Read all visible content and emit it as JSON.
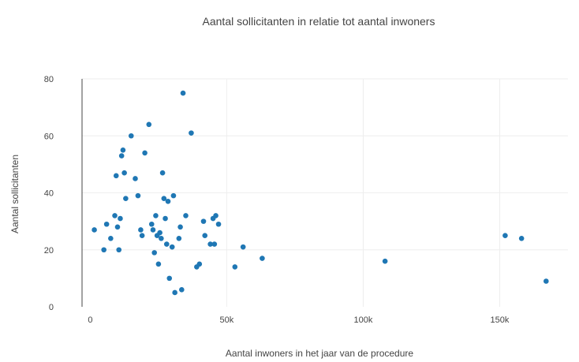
{
  "chart_data": {
    "type": "scatter",
    "title": "Aantal sollicitanten in relatie tot aantal inwoners",
    "xlabel": "Aantal inwoners in het jaar van de procedure",
    "ylabel": "Aantal sollicitanten",
    "xlim": [
      -3000,
      175000
    ],
    "ylim": [
      0,
      80
    ],
    "xticks": [
      {
        "value": 0,
        "label": "0"
      },
      {
        "value": 50000,
        "label": "50k"
      },
      {
        "value": 100000,
        "label": "100k"
      },
      {
        "value": 150000,
        "label": "150k"
      }
    ],
    "yticks": [
      {
        "value": 0,
        "label": "0"
      },
      {
        "value": 20,
        "label": "20"
      },
      {
        "value": 40,
        "label": "40"
      },
      {
        "value": 60,
        "label": "60"
      },
      {
        "value": 80,
        "label": "80"
      }
    ],
    "grid": true,
    "marker_color": "#1f77b4",
    "series": [
      {
        "points": [
          {
            "x": 1500,
            "y": 27
          },
          {
            "x": 5000,
            "y": 20
          },
          {
            "x": 6000,
            "y": 29
          },
          {
            "x": 7500,
            "y": 24
          },
          {
            "x": 9000,
            "y": 32
          },
          {
            "x": 9500,
            "y": 46
          },
          {
            "x": 10000,
            "y": 28
          },
          {
            "x": 10500,
            "y": 20
          },
          {
            "x": 11000,
            "y": 31
          },
          {
            "x": 11500,
            "y": 53
          },
          {
            "x": 12000,
            "y": 55
          },
          {
            "x": 12500,
            "y": 47
          },
          {
            "x": 13000,
            "y": 38
          },
          {
            "x": 15000,
            "y": 60
          },
          {
            "x": 16500,
            "y": 45
          },
          {
            "x": 17500,
            "y": 39
          },
          {
            "x": 18500,
            "y": 27
          },
          {
            "x": 19000,
            "y": 25
          },
          {
            "x": 20000,
            "y": 54
          },
          {
            "x": 21500,
            "y": 64
          },
          {
            "x": 22500,
            "y": 29
          },
          {
            "x": 23000,
            "y": 27
          },
          {
            "x": 23500,
            "y": 19
          },
          {
            "x": 24000,
            "y": 32
          },
          {
            "x": 24500,
            "y": 25
          },
          {
            "x": 25000,
            "y": 15
          },
          {
            "x": 25500,
            "y": 26
          },
          {
            "x": 26000,
            "y": 24
          },
          {
            "x": 26500,
            "y": 47
          },
          {
            "x": 27000,
            "y": 38
          },
          {
            "x": 27500,
            "y": 31
          },
          {
            "x": 28000,
            "y": 22
          },
          {
            "x": 28500,
            "y": 37
          },
          {
            "x": 29000,
            "y": 10
          },
          {
            "x": 30000,
            "y": 21
          },
          {
            "x": 30500,
            "y": 39
          },
          {
            "x": 31000,
            "y": 5
          },
          {
            "x": 32500,
            "y": 24
          },
          {
            "x": 33000,
            "y": 28
          },
          {
            "x": 33500,
            "y": 6
          },
          {
            "x": 34000,
            "y": 75
          },
          {
            "x": 35000,
            "y": 32
          },
          {
            "x": 37000,
            "y": 61
          },
          {
            "x": 39000,
            "y": 14
          },
          {
            "x": 40000,
            "y": 15
          },
          {
            "x": 41500,
            "y": 30
          },
          {
            "x": 42000,
            "y": 25
          },
          {
            "x": 44000,
            "y": 22
          },
          {
            "x": 45000,
            "y": 31
          },
          {
            "x": 45500,
            "y": 22
          },
          {
            "x": 46000,
            "y": 32
          },
          {
            "x": 47000,
            "y": 29
          },
          {
            "x": 53000,
            "y": 14
          },
          {
            "x": 56000,
            "y": 21
          },
          {
            "x": 63000,
            "y": 17
          },
          {
            "x": 108000,
            "y": 16
          },
          {
            "x": 152000,
            "y": 25
          },
          {
            "x": 158000,
            "y": 24
          },
          {
            "x": 167000,
            "y": 9
          }
        ]
      }
    ]
  }
}
